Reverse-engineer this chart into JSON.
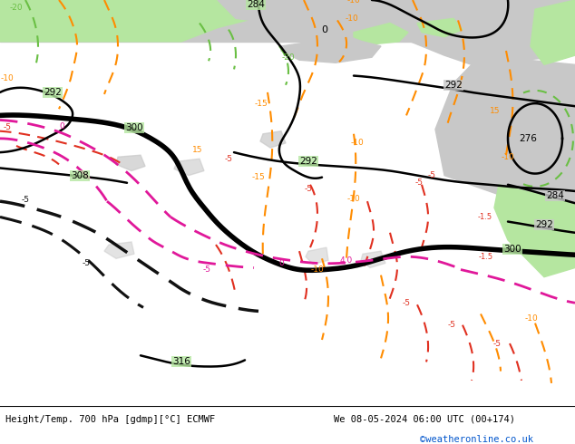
{
  "title_left": "Height/Temp. 700 hPa [gdmp][°C] ECMWF",
  "title_right": "We 08-05-2024 06:00 UTC (00+174)",
  "credit": "©weatheronline.co.uk",
  "bg_green": "#b5e6a0",
  "sea_grey": "#c8c8c8",
  "land_grey": "#a8a8a8",
  "fig_width": 6.34,
  "fig_height": 4.9
}
